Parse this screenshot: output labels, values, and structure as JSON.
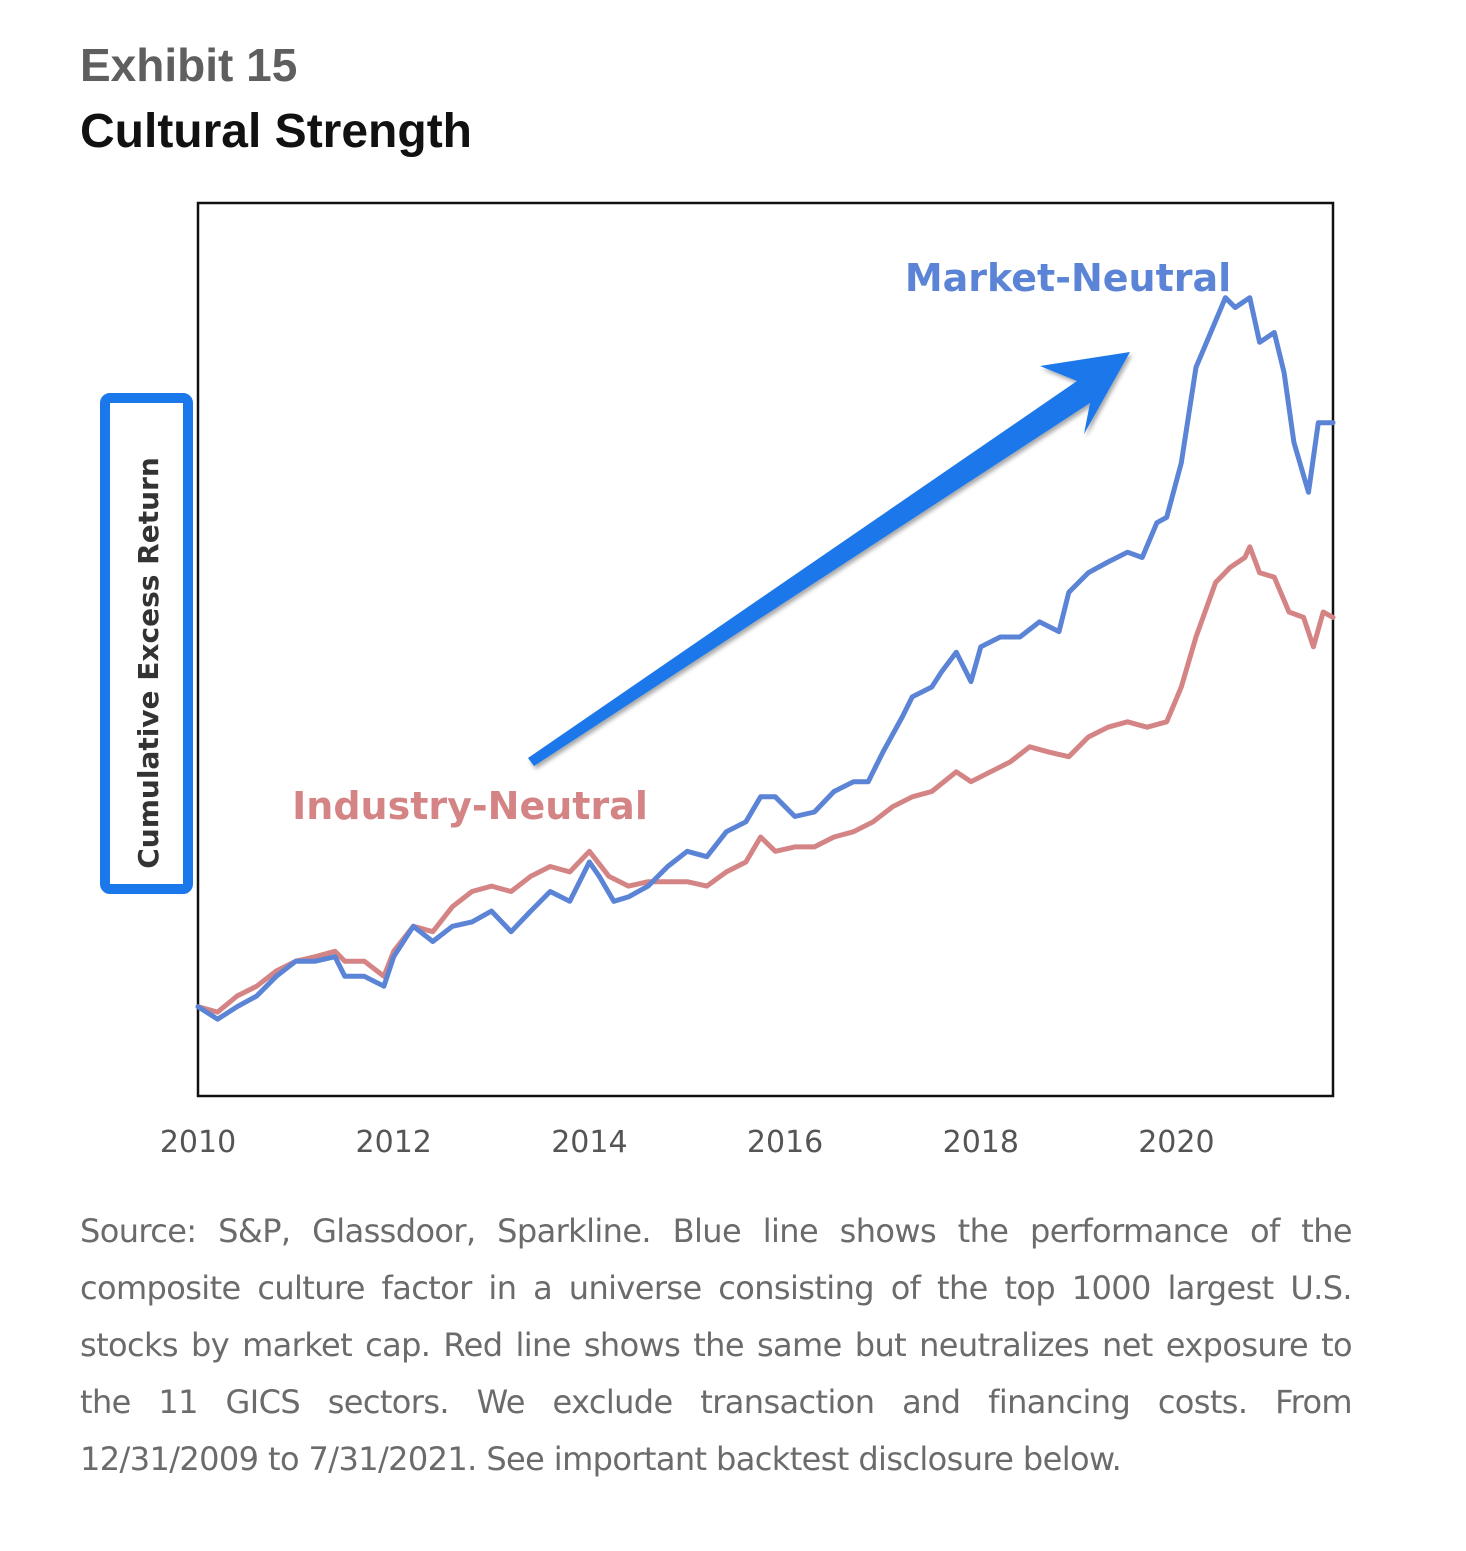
{
  "header": {
    "exhibit": "Exhibit 15",
    "title": "Cultural Strength"
  },
  "caption": "Source: S&P, Glassdoor, Sparkline. Blue line shows the performance of the composite culture factor in a universe consisting of the top 1000 largest U.S. stocks by market cap. Red line shows the same but neutralizes net exposure to the 11 GICS sectors. We exclude transaction and financing costs. From 12/31/2009 to 7/31/2021. See important backtest disclosure below.",
  "colors": {
    "market_neutral": "#5b84d6",
    "industry_neutral": "#d48484",
    "arrow": "#1b78ea",
    "ylabel_box": "#1b78ea"
  },
  "chart_data": {
    "type": "line",
    "title": "",
    "xlabel": "",
    "ylabel": "Cumulative Excess Return",
    "xlim": [
      2010,
      2021.6
    ],
    "ylim": [
      0,
      100
    ],
    "x_ticks": [
      "2010",
      "2012",
      "2014",
      "2016",
      "2018",
      "2020"
    ],
    "y_ticks_shown": false,
    "grid": false,
    "annotations": [
      "Market-Neutral",
      "Industry-Neutral",
      "upward trend arrow"
    ],
    "series": [
      {
        "name": "Market-Neutral",
        "points": [
          [
            2010.0,
            10.0
          ],
          [
            2010.2,
            8.6
          ],
          [
            2010.4,
            10.0
          ],
          [
            2010.6,
            11.2
          ],
          [
            2010.8,
            13.4
          ],
          [
            2011.0,
            15.1
          ],
          [
            2011.2,
            15.1
          ],
          [
            2011.4,
            15.6
          ],
          [
            2011.5,
            13.4
          ],
          [
            2011.7,
            13.4
          ],
          [
            2011.9,
            12.3
          ],
          [
            2012.0,
            15.6
          ],
          [
            2012.2,
            19.0
          ],
          [
            2012.4,
            17.3
          ],
          [
            2012.6,
            19.0
          ],
          [
            2012.8,
            19.5
          ],
          [
            2013.0,
            20.7
          ],
          [
            2013.2,
            18.4
          ],
          [
            2013.4,
            20.7
          ],
          [
            2013.6,
            22.9
          ],
          [
            2013.8,
            21.8
          ],
          [
            2014.0,
            26.2
          ],
          [
            2014.1,
            24.6
          ],
          [
            2014.25,
            21.8
          ],
          [
            2014.4,
            22.3
          ],
          [
            2014.6,
            23.5
          ],
          [
            2014.8,
            25.7
          ],
          [
            2015.0,
            27.4
          ],
          [
            2015.2,
            26.8
          ],
          [
            2015.4,
            29.6
          ],
          [
            2015.6,
            30.7
          ],
          [
            2015.75,
            33.5
          ],
          [
            2015.9,
            33.5
          ],
          [
            2016.1,
            31.3
          ],
          [
            2016.3,
            31.8
          ],
          [
            2016.5,
            34.1
          ],
          [
            2016.7,
            35.2
          ],
          [
            2016.85,
            35.2
          ],
          [
            2017.0,
            38.5
          ],
          [
            2017.2,
            42.5
          ],
          [
            2017.3,
            44.7
          ],
          [
            2017.5,
            45.8
          ],
          [
            2017.6,
            47.5
          ],
          [
            2017.75,
            49.7
          ],
          [
            2017.9,
            46.4
          ],
          [
            2018.0,
            50.3
          ],
          [
            2018.2,
            51.4
          ],
          [
            2018.4,
            51.4
          ],
          [
            2018.6,
            53.1
          ],
          [
            2018.8,
            52.0
          ],
          [
            2018.9,
            56.4
          ],
          [
            2019.0,
            57.5
          ],
          [
            2019.1,
            58.6
          ],
          [
            2019.3,
            59.8
          ],
          [
            2019.5,
            60.9
          ],
          [
            2019.65,
            60.3
          ],
          [
            2019.8,
            64.2
          ],
          [
            2019.9,
            64.8
          ],
          [
            2020.05,
            70.9
          ],
          [
            2020.2,
            81.6
          ],
          [
            2020.35,
            85.5
          ],
          [
            2020.5,
            89.4
          ],
          [
            2020.6,
            88.3
          ],
          [
            2020.75,
            89.4
          ],
          [
            2020.85,
            84.4
          ],
          [
            2021.0,
            85.5
          ],
          [
            2021.1,
            81.0
          ],
          [
            2021.2,
            73.2
          ],
          [
            2021.35,
            67.6
          ],
          [
            2021.45,
            75.4
          ],
          [
            2021.6,
            75.4
          ]
        ]
      },
      {
        "name": "Industry-Neutral",
        "points": [
          [
            2010.0,
            10.0
          ],
          [
            2010.2,
            9.4
          ],
          [
            2010.4,
            11.2
          ],
          [
            2010.6,
            12.3
          ],
          [
            2010.8,
            14.0
          ],
          [
            2011.0,
            15.1
          ],
          [
            2011.2,
            15.6
          ],
          [
            2011.4,
            16.2
          ],
          [
            2011.5,
            15.1
          ],
          [
            2011.7,
            15.1
          ],
          [
            2011.9,
            13.4
          ],
          [
            2012.0,
            16.2
          ],
          [
            2012.2,
            19.0
          ],
          [
            2012.4,
            18.4
          ],
          [
            2012.6,
            21.2
          ],
          [
            2012.8,
            22.9
          ],
          [
            2013.0,
            23.5
          ],
          [
            2013.2,
            22.9
          ],
          [
            2013.4,
            24.6
          ],
          [
            2013.6,
            25.7
          ],
          [
            2013.8,
            25.1
          ],
          [
            2014.0,
            27.4
          ],
          [
            2014.2,
            24.6
          ],
          [
            2014.4,
            23.5
          ],
          [
            2014.6,
            24.0
          ],
          [
            2014.8,
            24.0
          ],
          [
            2015.0,
            24.0
          ],
          [
            2015.2,
            23.5
          ],
          [
            2015.4,
            25.1
          ],
          [
            2015.6,
            26.2
          ],
          [
            2015.75,
            29.0
          ],
          [
            2015.9,
            27.4
          ],
          [
            2016.1,
            27.9
          ],
          [
            2016.3,
            27.9
          ],
          [
            2016.5,
            29.0
          ],
          [
            2016.7,
            29.6
          ],
          [
            2016.9,
            30.7
          ],
          [
            2017.1,
            32.4
          ],
          [
            2017.3,
            33.5
          ],
          [
            2017.5,
            34.1
          ],
          [
            2017.75,
            36.3
          ],
          [
            2017.9,
            35.2
          ],
          [
            2018.1,
            36.3
          ],
          [
            2018.3,
            37.4
          ],
          [
            2018.5,
            39.1
          ],
          [
            2018.7,
            38.5
          ],
          [
            2018.9,
            38.0
          ],
          [
            2019.1,
            40.2
          ],
          [
            2019.3,
            41.3
          ],
          [
            2019.5,
            41.9
          ],
          [
            2019.7,
            41.3
          ],
          [
            2019.9,
            41.9
          ],
          [
            2020.05,
            45.8
          ],
          [
            2020.2,
            51.4
          ],
          [
            2020.4,
            57.5
          ],
          [
            2020.55,
            59.2
          ],
          [
            2020.7,
            60.3
          ],
          [
            2020.75,
            61.5
          ],
          [
            2020.85,
            58.6
          ],
          [
            2021.0,
            58.1
          ],
          [
            2021.15,
            54.2
          ],
          [
            2021.3,
            53.6
          ],
          [
            2021.4,
            50.3
          ],
          [
            2021.5,
            54.2
          ],
          [
            2021.6,
            53.6
          ]
        ]
      }
    ]
  }
}
